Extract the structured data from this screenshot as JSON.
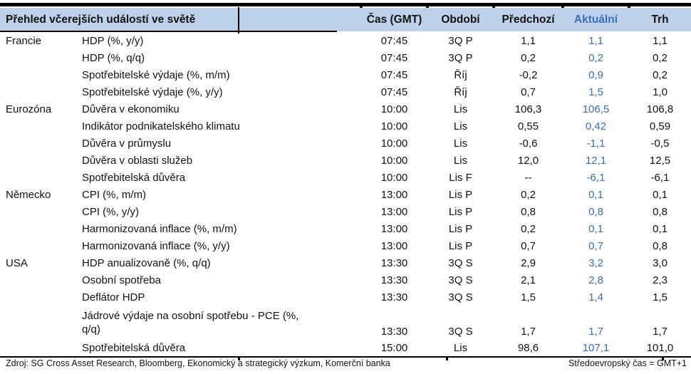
{
  "table": {
    "title": "Přehled včerejších událostí ve světě",
    "columns": [
      "Čas (GMT)",
      "Období",
      "Předchozí",
      "Aktuální",
      "Trh"
    ],
    "highlight_column": "Aktuální",
    "rows": [
      {
        "region": "Francie",
        "indicator": "HDP (%, y/y)",
        "time": "07:45",
        "period": "3Q P",
        "previous": "1,1",
        "actual": "1,1",
        "market": "1,1"
      },
      {
        "region": "",
        "indicator": "HDP (%, q/q)",
        "time": "07:45",
        "period": "3Q P",
        "previous": "0,2",
        "actual": "0,2",
        "market": "0,2"
      },
      {
        "region": "",
        "indicator": "Spotřebitelské výdaje (%, m/m)",
        "time": "07:45",
        "period": "Říj",
        "previous": "-0,2",
        "actual": "0,9",
        "market": "0,2"
      },
      {
        "region": "",
        "indicator": "Spotřebitelské výdaje (%, y/y)",
        "time": "07:45",
        "period": "Říj",
        "previous": "0,7",
        "actual": "1,5",
        "market": "1,0"
      },
      {
        "region": "Eurozóna",
        "indicator": "Důvěra v ekonomiku",
        "time": "10:00",
        "period": "Lis",
        "previous": "106,3",
        "actual": "106,5",
        "market": "106,8"
      },
      {
        "region": "",
        "indicator": "Indikátor podnikatelského klimatu",
        "time": "10:00",
        "period": "Lis",
        "previous": "0,55",
        "actual": "0,42",
        "market": "0,59"
      },
      {
        "region": "",
        "indicator": "Důvěra v průmyslu",
        "time": "10:00",
        "period": "Lis",
        "previous": "-0,6",
        "actual": "-1,1",
        "market": "-0,5"
      },
      {
        "region": "",
        "indicator": "Důvěra v oblasti služeb",
        "time": "10:00",
        "period": "Lis",
        "previous": "12,0",
        "actual": "12,1",
        "market": "12,5"
      },
      {
        "region": "",
        "indicator": "Spotřebitelská důvěra",
        "time": "10:00",
        "period": "Lis F",
        "previous": "--",
        "actual": "-6,1",
        "market": "-6,1"
      },
      {
        "region": "Německo",
        "indicator": "CPI (%, m/m)",
        "time": "13:00",
        "period": "Lis P",
        "previous": "0,2",
        "actual": "0,1",
        "market": "0,1"
      },
      {
        "region": "",
        "indicator": "CPI (%, y/y)",
        "time": "13:00",
        "period": "Lis P",
        "previous": "0,8",
        "actual": "0,8",
        "market": "0,8"
      },
      {
        "region": "",
        "indicator": "Harmonizovaná inflace (%, m/m)",
        "time": "13:00",
        "period": "Lis P",
        "previous": "0,2",
        "actual": "0,1",
        "market": "0,1"
      },
      {
        "region": "",
        "indicator": "Harmonizovaná inflace (%, y/y)",
        "time": "13:00",
        "period": "Lis P",
        "previous": "0,7",
        "actual": "0,7",
        "market": "0,8"
      },
      {
        "region": "USA",
        "indicator": "HDP anualizovaně (%, q/q)",
        "time": "13:30",
        "period": "3Q S",
        "previous": "2,9",
        "actual": "3,2",
        "market": "3,0"
      },
      {
        "region": "",
        "indicator": "Osobní spotřeba",
        "time": "13:30",
        "period": "3Q S",
        "previous": "2,1",
        "actual": "2,8",
        "market": "2,3"
      },
      {
        "region": "",
        "indicator": "Deflátor HDP",
        "time": "13:30",
        "period": "3Q S",
        "previous": "1,5",
        "actual": "1,4",
        "market": "1,5"
      },
      {
        "region": "",
        "indicator": "Jádrové výdaje na osobní spotřebu - PCE (%,\nq/q)",
        "time": "13:30",
        "period": "3Q S",
        "previous": "1,7",
        "actual": "1,7",
        "market": "1,7"
      },
      {
        "region": "",
        "indicator": "Spotřebitelská důvěra",
        "time": "15:00",
        "period": "Lis",
        "previous": "98,6",
        "actual": "107,1",
        "market": "101,0"
      }
    ]
  },
  "footer": {
    "source": "Zdroj: SG Cross Asset Research, Bloomberg, Ekonomický a strategický výzkum, Komerční banka",
    "timezone_note": "Středoevropský čas = GMT+1"
  },
  "colors": {
    "header_bg": "#bdd2ea",
    "accent_blue": "#3a6db8"
  }
}
